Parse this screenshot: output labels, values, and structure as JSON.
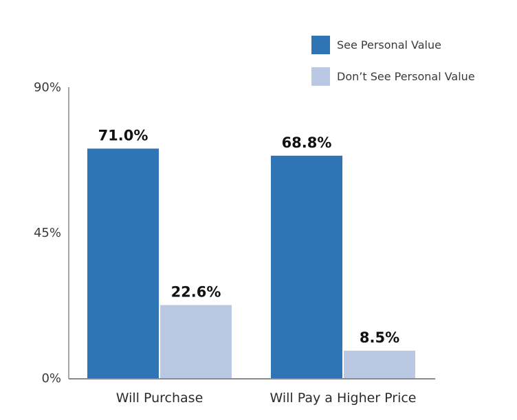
{
  "chart_data": {
    "type": "bar",
    "categories": [
      "Will Purchase",
      "Will Pay a Higher Price"
    ],
    "series": [
      {
        "name": "See Personal Value",
        "values": [
          71.0,
          68.8
        ],
        "labels": [
          "71.0%",
          "68.8%"
        ],
        "color": "#2f74b5"
      },
      {
        "name": "Don’t See Personal Value",
        "values": [
          22.6,
          8.5
        ],
        "labels": [
          "22.6%",
          "8.5%"
        ],
        "color": "#bac8e3"
      }
    ],
    "ylim": [
      0,
      90
    ],
    "yticks": [
      0,
      45,
      90
    ],
    "ytick_labels": [
      "0%",
      "45%",
      "90%"
    ],
    "grid": false,
    "legend_position": "top-right"
  }
}
